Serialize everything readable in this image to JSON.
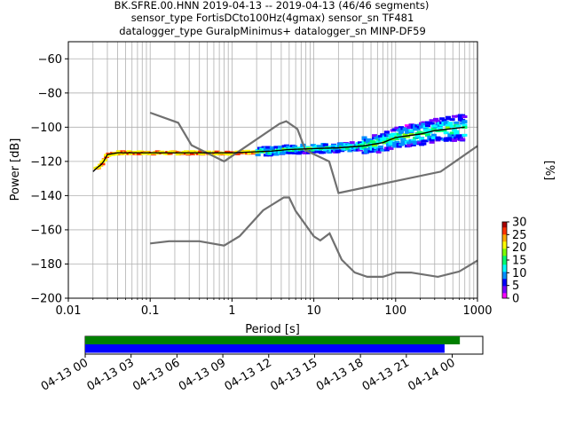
{
  "title_lines": [
    "BK.SFRE.00.HNN   2019-04-13 -- 2019-04-13  (46/46 segments)",
    "sensor_type FortisDCto100Hz(4gmax) sensor_sn TF481",
    "datalogger_type GuralpMinimus+ datalogger_sn MINP-DF59"
  ],
  "chart_data": [
    {
      "type": "heatmap",
      "subtype": "probabilistic power spectral density",
      "xlabel": "Period [s]",
      "ylabel": "Power [dB]",
      "xscale": "log",
      "xlim": [
        0.01,
        1000
      ],
      "ylim": [
        -200,
        -50
      ],
      "xticks": [
        0.01,
        0.1,
        1,
        10,
        100,
        1000
      ],
      "xtick_labels": [
        "0.01",
        "0.1",
        "1",
        "10",
        "100",
        "1000"
      ],
      "yticks": [
        -60,
        -80,
        -100,
        -120,
        -140,
        -160,
        -180,
        -200
      ],
      "ytick_labels": [
        "−60",
        "−80",
        "−100",
        "−120",
        "−140",
        "−160",
        "−180",
        "−200"
      ],
      "grid": true,
      "colorbar": {
        "label": "[%]",
        "range": [
          0,
          30
        ],
        "ticks": [
          0,
          5,
          10,
          15,
          20,
          25,
          30
        ],
        "tick_labels": [
          "0",
          "5",
          "10",
          "15",
          "20",
          "25",
          "30"
        ],
        "colormap": [
          "#ff00ff",
          "#7700ff",
          "#0000ff",
          "#0090ff",
          "#00ffff",
          "#00ff70",
          "#7fff00",
          "#ffff00",
          "#ffaa00",
          "#ff3300",
          "#aa0000"
        ]
      },
      "noise_models": [
        {
          "name": "NHNM",
          "color": "#707070",
          "x": [
            0.1,
            0.22,
            0.32,
            0.8,
            3.8,
            4.6,
            6.3,
            7.9,
            15.4,
            20,
            354.8,
            1000
          ],
          "y": [
            -91.5,
            -97.4,
            -110.5,
            -120,
            -98,
            -96.5,
            -101,
            -113.5,
            -120,
            -138.5,
            -126,
            -111
          ]
        },
        {
          "name": "NLNM",
          "color": "#707070",
          "x": [
            0.1,
            0.17,
            0.4,
            0.8,
            1.24,
            2.4,
            4.3,
            5,
            6,
            10,
            12,
            15.6,
            21.9,
            31.6,
            45,
            70,
            101,
            154,
            328,
            600,
            1000
          ],
          "y": [
            -168,
            -166.7,
            -166.7,
            -169.2,
            -163.7,
            -148.6,
            -141.1,
            -141.1,
            -149,
            -163.8,
            -166.2,
            -162.1,
            -177.5,
            -185,
            -187.5,
            -187.5,
            -185,
            -185,
            -187.5,
            -184.4,
            -178
          ]
        }
      ],
      "mode_line": {
        "color": "#000000",
        "x": [
          0.02,
          0.022,
          0.025,
          0.027,
          0.03,
          0.04,
          0.1,
          0.5,
          1,
          3,
          5,
          10,
          20,
          40,
          70,
          100,
          200,
          300,
          700
        ],
        "y": [
          -126,
          -124,
          -122,
          -120,
          -116,
          -115,
          -115,
          -115,
          -115,
          -114,
          -113,
          -112.5,
          -112,
          -111,
          -109,
          -106,
          -104,
          -102,
          -100
        ]
      },
      "histogram_notes": "Colored cells scatter around the mode line from about -113 to -108 dB between 3 s and 40 s, spreading from -110 to -92 dB beyond 100 s."
    },
    {
      "type": "timeline",
      "xlim": [
        "2019-04-13 00:00",
        "2019-04-14 02:00"
      ],
      "xticks": [
        "2019-04-13 00:00",
        "2019-04-13 03:00",
        "2019-04-13 06:00",
        "2019-04-13 09:00",
        "2019-04-13 12:00",
        "2019-04-13 15:00",
        "2019-04-13 18:00",
        "2019-04-13 21:00",
        "2019-04-14 00:00"
      ],
      "xtick_labels": [
        "04-13 00",
        "04-13 03",
        "04-13 06",
        "04-13 09",
        "04-13 12",
        "04-13 15",
        "04-13 18",
        "04-13 21",
        "04-14 00"
      ],
      "bars": [
        {
          "color": "#008000",
          "start": "2019-04-13 00:00",
          "end": "2019-04-14 00:30"
        },
        {
          "color": "#0000ff",
          "start": "2019-04-13 00:00",
          "end": "2019-04-13 23:30"
        }
      ]
    }
  ]
}
